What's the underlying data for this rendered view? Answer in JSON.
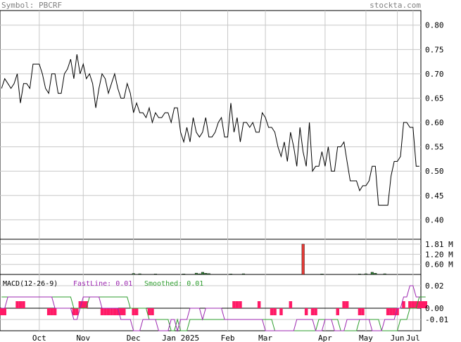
{
  "header": {
    "symbol_label": "Symbol: PBCRF",
    "site": "stockta.com"
  },
  "colors": {
    "price_line": "#000000",
    "grid": "#c8c8c8",
    "volume_bar": "#2e7d32",
    "volume_spike": "#e53935",
    "macd_line": "#9c27b0",
    "signal_line": "#2e9e2e",
    "histogram": "#ff1a66",
    "header_text": "#808080",
    "fast_label": "#9c27b0",
    "smooth_label": "#2e9e2e"
  },
  "chart_data": [
    {
      "type": "line",
      "panel": "price",
      "title": "",
      "y_ticks": [
        "0.80",
        "0.75",
        "0.70",
        "0.65",
        "0.60",
        "0.55",
        "0.50",
        "0.45",
        "0.40"
      ],
      "ylim": [
        0.36,
        0.83
      ],
      "x_labels": [
        "Oct",
        "Nov",
        "Dec",
        "Jan 2025",
        "Feb",
        "Mar",
        "Apr",
        "May",
        "Jun",
        "Jul"
      ],
      "grid": true,
      "values": [
        0.67,
        0.69,
        0.68,
        0.67,
        0.68,
        0.7,
        0.64,
        0.68,
        0.68,
        0.67,
        0.72,
        0.72,
        0.72,
        0.7,
        0.67,
        0.66,
        0.7,
        0.7,
        0.66,
        0.66,
        0.7,
        0.71,
        0.73,
        0.69,
        0.74,
        0.7,
        0.72,
        0.69,
        0.7,
        0.68,
        0.63,
        0.67,
        0.7,
        0.69,
        0.66,
        0.68,
        0.7,
        0.67,
        0.65,
        0.65,
        0.68,
        0.66,
        0.62,
        0.64,
        0.62,
        0.62,
        0.61,
        0.63,
        0.6,
        0.62,
        0.61,
        0.61,
        0.62,
        0.62,
        0.6,
        0.63,
        0.63,
        0.58,
        0.56,
        0.59,
        0.56,
        0.61,
        0.58,
        0.57,
        0.58,
        0.61,
        0.57,
        0.57,
        0.58,
        0.6,
        0.61,
        0.57,
        0.57,
        0.64,
        0.58,
        0.61,
        0.56,
        0.6,
        0.6,
        0.59,
        0.6,
        0.58,
        0.58,
        0.62,
        0.61,
        0.59,
        0.59,
        0.58,
        0.55,
        0.53,
        0.56,
        0.52,
        0.58,
        0.55,
        0.51,
        0.59,
        0.54,
        0.51,
        0.6,
        0.5,
        0.51,
        0.51,
        0.54,
        0.51,
        0.55,
        0.5,
        0.5,
        0.55,
        0.55,
        0.56,
        0.52,
        0.48,
        0.48,
        0.48,
        0.46,
        0.47,
        0.47,
        0.48,
        0.51,
        0.51,
        0.43,
        0.43,
        0.43,
        0.43,
        0.49,
        0.52,
        0.52,
        0.53,
        0.6,
        0.6,
        0.59,
        0.59,
        0.51,
        0.51
      ]
    },
    {
      "type": "bar",
      "panel": "volume",
      "y_ticks": [
        "1.81 M",
        "1.20 M",
        "0.60 M"
      ],
      "ylim": [
        0,
        2.1
      ],
      "unit": "M",
      "values": [
        0,
        0,
        0,
        0,
        0,
        0,
        0,
        0,
        0,
        0,
        0,
        0,
        0,
        0,
        0,
        0,
        0,
        0,
        0,
        0,
        0,
        0,
        0,
        0,
        0,
        0,
        0,
        0,
        0,
        0,
        0,
        0,
        0,
        0,
        0,
        0,
        0,
        0,
        0,
        0,
        0,
        0,
        0.06,
        0,
        0.04,
        0,
        0,
        0,
        0,
        0.03,
        0,
        0,
        0,
        0,
        0,
        0,
        0,
        0,
        0.03,
        0,
        0,
        0,
        0.08,
        0.04,
        0.13,
        0.07,
        0.05,
        0,
        0,
        0,
        0,
        0,
        0,
        0.03,
        0,
        0,
        0,
        0.04,
        0,
        0,
        0,
        0,
        0,
        0,
        0,
        0,
        0,
        0,
        0,
        0,
        0,
        0,
        0,
        0,
        0,
        0,
        1.81,
        0,
        0,
        0,
        0,
        0,
        0.03,
        0,
        0,
        0,
        0,
        0,
        0,
        0,
        0,
        0,
        0,
        0,
        0.03,
        0,
        0.04,
        0,
        0.13,
        0.07,
        0,
        0,
        0.04,
        0,
        0,
        0,
        0,
        0,
        0,
        0,
        0,
        0,
        0,
        0
      ]
    },
    {
      "type": "line",
      "panel": "macd",
      "label": "MACD(12-26-9)",
      "fast_label": "FastLine: 0.01",
      "smoothed_label": "Smoothed: 0.01",
      "y_ticks": [
        "0.02",
        "0.00",
        "-0.01"
      ],
      "ylim": [
        -0.02,
        0.03
      ],
      "fast": [
        0.0,
        0.0,
        0.01,
        0.01,
        0.01,
        0.01,
        0.01,
        0.01,
        0.01,
        0.01,
        0.01,
        0.01,
        0.01,
        0.01,
        0.01,
        0.01,
        0.01,
        0.0,
        0.0,
        0.0,
        0.0,
        0.0,
        0.0,
        -0.01,
        -0.01,
        0.0,
        0.01,
        0.01,
        0.01,
        0.01,
        0.01,
        0.01,
        0.0,
        0.0,
        0.0,
        0.0,
        0.0,
        0.0,
        -0.01,
        -0.01,
        -0.01,
        -0.01,
        -0.02,
        -0.02,
        -0.02,
        -0.01,
        -0.01,
        -0.01,
        -0.01,
        -0.01,
        -0.02,
        -0.02,
        -0.02,
        -0.02,
        -0.01,
        -0.01,
        -0.02,
        -0.01,
        -0.01,
        -0.01,
        0.0,
        0.0,
        0.0,
        0.0,
        -0.01,
        0.0,
        0.0,
        0.0,
        0.0,
        0.0,
        0.0,
        -0.01,
        -0.01,
        -0.01,
        -0.01,
        -0.01,
        -0.01,
        -0.01,
        -0.01,
        -0.01,
        -0.01,
        -0.01,
        -0.01,
        -0.01,
        -0.02,
        -0.02,
        -0.02,
        -0.02,
        -0.02,
        -0.02,
        -0.02,
        -0.02,
        -0.02,
        -0.02,
        -0.01,
        -0.01,
        -0.01,
        -0.01,
        -0.01,
        -0.01,
        -0.02,
        -0.02,
        -0.02,
        -0.01,
        -0.01,
        -0.01,
        -0.02,
        -0.02,
        -0.02,
        -0.02,
        -0.01,
        -0.01,
        -0.01,
        -0.01,
        -0.01,
        -0.01,
        -0.01,
        -0.01,
        -0.02,
        -0.02,
        -0.02,
        -0.02,
        -0.01,
        -0.01,
        -0.01,
        -0.01,
        0.0,
        0.0,
        0.01,
        0.01,
        0.02,
        0.02,
        0.01,
        0.01
      ],
      "smoothed": [
        0.01,
        0.01,
        0.01,
        0.01,
        0.01,
        0.01,
        0.01,
        0.01,
        0.01,
        0.01,
        0.01,
        0.01,
        0.01,
        0.01,
        0.01,
        0.01,
        0.01,
        0.01,
        0.01,
        0.01,
        0.01,
        0.01,
        0.01,
        0.0,
        0.0,
        0.0,
        0.0,
        0.0,
        0.01,
        0.01,
        0.01,
        0.01,
        0.01,
        0.01,
        0.01,
        0.01,
        0.01,
        0.01,
        0.01,
        0.01,
        0.01,
        0.0,
        0.0,
        0.0,
        0.0,
        0.0,
        0.0,
        -0.01,
        -0.01,
        -0.01,
        -0.01,
        -0.01,
        -0.01,
        -0.01,
        -0.02,
        -0.02,
        -0.01,
        -0.02,
        -0.02,
        -0.02,
        -0.01,
        -0.01,
        -0.01,
        -0.01,
        -0.01,
        -0.01,
        -0.01,
        -0.01,
        -0.01,
        -0.01,
        -0.01,
        -0.01,
        -0.01,
        -0.01,
        -0.01,
        -0.01,
        -0.01,
        -0.01,
        -0.01,
        -0.01,
        -0.01,
        -0.01,
        -0.01,
        -0.01,
        -0.01,
        -0.01,
        -0.01,
        -0.02,
        -0.02,
        -0.02,
        -0.02,
        -0.02,
        -0.02,
        -0.02,
        -0.02,
        -0.02,
        -0.02,
        -0.02,
        -0.02,
        -0.02,
        -0.02,
        -0.01,
        -0.01,
        -0.01,
        -0.01,
        -0.01,
        -0.01,
        -0.01,
        -0.02,
        -0.02,
        -0.02,
        -0.02,
        -0.02,
        -0.02,
        -0.01,
        -0.01,
        -0.01,
        -0.01,
        -0.01,
        -0.01,
        -0.01,
        -0.02,
        -0.02,
        -0.02,
        -0.02,
        -0.02,
        -0.02,
        -0.01,
        -0.01,
        -0.01,
        0.0,
        0.0,
        0.0,
        0.01,
        0.01,
        0.01
      ],
      "histogram_sign": [
        -1,
        -1,
        0,
        0,
        0,
        1,
        1,
        1,
        0,
        0,
        0,
        0,
        0,
        0,
        0,
        -1,
        -1,
        -1,
        0,
        0,
        0,
        0,
        0,
        -1,
        -1,
        1,
        1,
        1,
        0,
        0,
        0,
        0,
        -1,
        -1,
        -1,
        -1,
        -1,
        -1,
        -1,
        -1,
        0,
        0,
        -1,
        -1,
        0,
        0,
        0,
        -1,
        -1,
        0,
        0,
        0,
        0,
        0,
        0,
        0,
        0,
        0,
        0,
        0,
        0,
        0,
        0,
        0,
        0,
        0,
        0,
        0,
        0,
        0,
        0,
        0,
        0,
        0,
        1,
        1,
        1,
        0,
        0,
        0,
        0,
        0,
        1,
        0,
        0,
        0,
        -1,
        -1,
        0,
        -1,
        0,
        0,
        1,
        0,
        0,
        0,
        0,
        -1,
        0,
        -1,
        -1,
        0,
        0,
        0,
        0,
        0,
        0,
        -1,
        0,
        1,
        1,
        0,
        0,
        0,
        -1,
        -1,
        0,
        0,
        0,
        0,
        0,
        0,
        0,
        -1,
        -1,
        -1,
        -1,
        0,
        1,
        0,
        1,
        1,
        1,
        1,
        1,
        1,
        0,
        0
      ]
    }
  ]
}
